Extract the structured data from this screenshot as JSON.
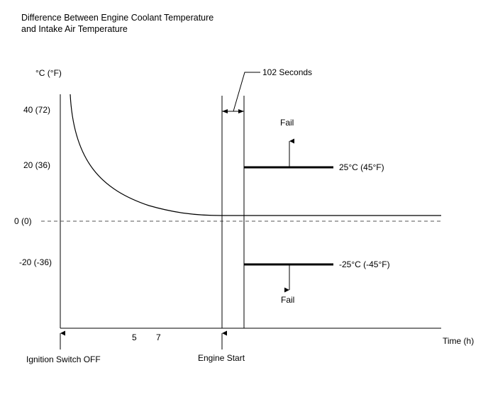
{
  "title": {
    "line1": "Difference Between Engine Coolant Temperature",
    "line2": "and Intake Air Temperature"
  },
  "y_axis": {
    "unit": "°C (°F)",
    "ticks": [
      {
        "label": "40 (72)",
        "value": 40
      },
      {
        "label": "20 (36)",
        "value": 20
      },
      {
        "label": "0 (0)",
        "value": 0
      },
      {
        "label": "-20 (-36)",
        "value": -20
      }
    ]
  },
  "x_axis": {
    "label": "Time (h)",
    "ticks": [
      {
        "label": "5",
        "value": 5
      },
      {
        "label": "7",
        "value": 7
      }
    ]
  },
  "annotations": {
    "interval": "102 Seconds",
    "upper_threshold": "25°C (45°F)",
    "lower_threshold": "-25°C (-45°F)",
    "fail_upper": "Fail",
    "fail_lower": "Fail",
    "ignition_off": "Ignition Switch OFF",
    "engine_start": "Engine Start"
  },
  "chart_data": {
    "type": "line",
    "thresholds": [
      25,
      -25
    ],
    "ylim": [
      -40,
      47
    ]
  }
}
